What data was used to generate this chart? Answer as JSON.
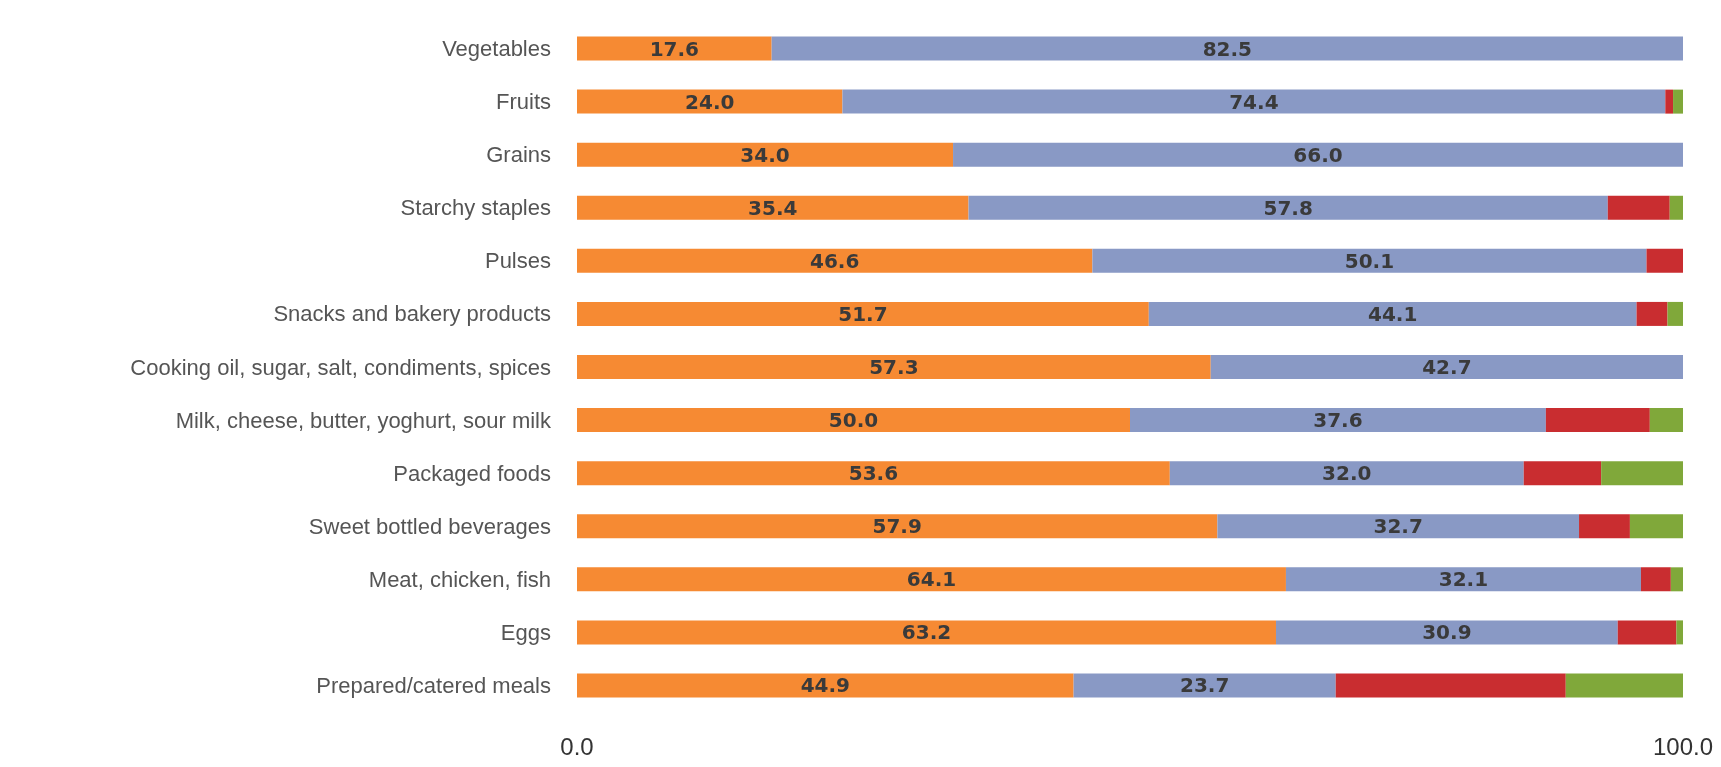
{
  "chart_data": {
    "type": "bar",
    "orientation": "horizontal",
    "stacked": true,
    "categories": [
      "Vegetables",
      "Fruits",
      "Grains",
      "Starchy staples",
      "Pulses",
      "Snacks and bakery products",
      "Cooking oil, sugar, salt, condiments, spices",
      "Milk, cheese, butter, yoghurt, sour milk",
      "Packaged foods",
      "Sweet bottled beverages",
      "Meat, chicken, fish",
      "Eggs",
      "Prepared/catered meals"
    ],
    "series": [
      {
        "color": "#f68a33",
        "values": [
          17.6,
          24.0,
          34.0,
          35.4,
          46.6,
          51.7,
          57.3,
          50.0,
          53.6,
          57.9,
          64.1,
          63.2,
          44.9
        ],
        "value_labels": [
          "17.6",
          "24.0",
          "34.0",
          "35.4",
          "46.6",
          "51.7",
          "57.3",
          "50.0",
          "53.6",
          "57.9",
          "64.1",
          "63.2",
          "44.9"
        ]
      },
      {
        "color": "#8999c5",
        "values": [
          82.5,
          74.4,
          66.0,
          57.8,
          50.1,
          44.1,
          42.7,
          37.6,
          32.0,
          32.7,
          32.1,
          30.9,
          23.7
        ],
        "value_labels": [
          "82.5",
          "74.4",
          "66.0",
          "57.8",
          "50.1",
          "44.1",
          "42.7",
          "37.6",
          "32.0",
          "32.7",
          "32.1",
          "30.9",
          "23.7"
        ]
      },
      {
        "color": "#c92d30",
        "values": [
          0,
          0.7,
          0,
          5.6,
          3.3,
          2.8,
          0,
          9.4,
          7.0,
          4.6,
          2.7,
          5.3,
          20.8
        ]
      },
      {
        "color": "#80a83a",
        "values": [
          0,
          0.9,
          0,
          1.3,
          0,
          1.4,
          0,
          3.0,
          7.4,
          4.8,
          1.1,
          0.6,
          10.6
        ]
      }
    ],
    "xlim": [
      0,
      100
    ],
    "xticks": [
      {
        "value": 0,
        "label": "0.0"
      },
      {
        "value": 100,
        "label": "100.0"
      }
    ],
    "grid": false
  }
}
